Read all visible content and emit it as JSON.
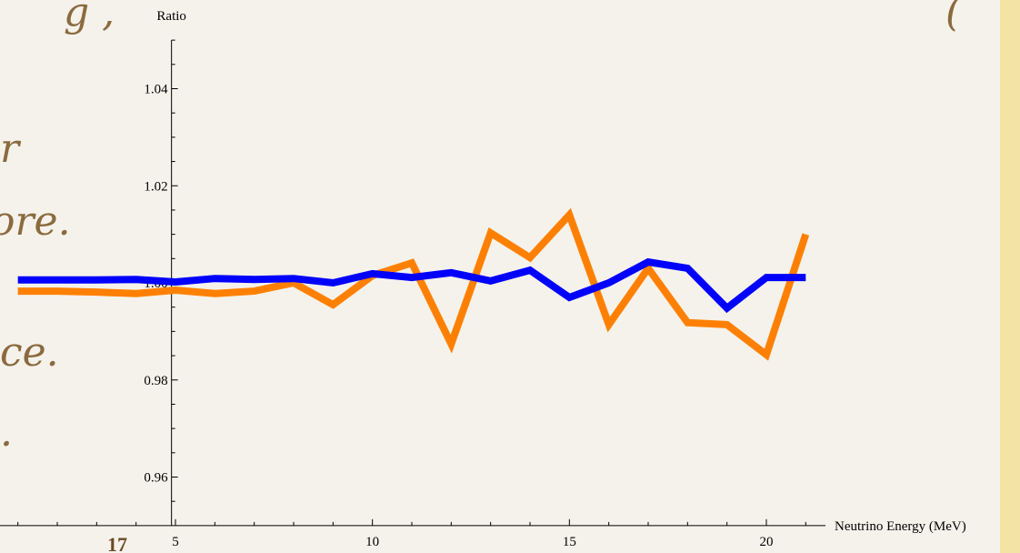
{
  "slide": {
    "fragments": [
      "g ,",
      "(",
      "r",
      "ore.",
      "ce.",
      "."
    ],
    "page_number": "17"
  },
  "chart_data": {
    "type": "line",
    "x_label": "Neutrino Energy (MeV)",
    "y_label": "Ratio",
    "x": [
      1,
      2,
      3,
      4,
      5,
      6,
      7,
      8,
      9,
      10,
      11,
      12,
      13,
      14,
      15,
      16,
      17,
      18,
      19,
      20,
      21
    ],
    "series": [
      {
        "name": "orange",
        "color": "#ff8000",
        "values": [
          0.9983,
          0.9983,
          0.9981,
          0.9978,
          0.9985,
          0.9978,
          0.9983,
          1.0,
          0.9955,
          1.0015,
          1.0041,
          0.9874,
          1.0103,
          1.0052,
          1.014,
          0.9914,
          1.003,
          0.9918,
          0.9914,
          0.9852,
          1.01
        ]
      },
      {
        "name": "blue",
        "color": "#0000ff",
        "values": [
          1.0006,
          1.0006,
          1.0006,
          1.0007,
          1.0002,
          1.0009,
          1.0007,
          1.0009,
          1.0,
          1.0019,
          1.0011,
          1.0021,
          1.0004,
          1.0026,
          0.997,
          1.0,
          1.0043,
          1.003,
          0.9948,
          1.0011,
          1.0011
        ]
      }
    ],
    "xlim": [
      0.5,
      21.5
    ],
    "ylim": [
      0.95,
      1.05
    ],
    "xticks": [
      5,
      10,
      15,
      20
    ],
    "xminorticks": [
      1,
      2,
      3,
      4,
      6,
      7,
      8,
      9,
      11,
      12,
      13,
      14,
      16,
      17,
      18,
      19,
      21
    ],
    "yticks": [
      0.96,
      0.98,
      {
        "value": 1,
        "label": "1.00"
      },
      1.02,
      1.04
    ],
    "yminorticks": [
      0.955,
      0.965,
      0.97,
      0.975,
      0.985,
      0.99,
      0.995,
      1.005,
      1.01,
      1.015,
      1.025,
      1.03,
      1.035,
      1.045,
      1.05
    ],
    "axes_origin": [
      4.9,
      0.95
    ]
  }
}
